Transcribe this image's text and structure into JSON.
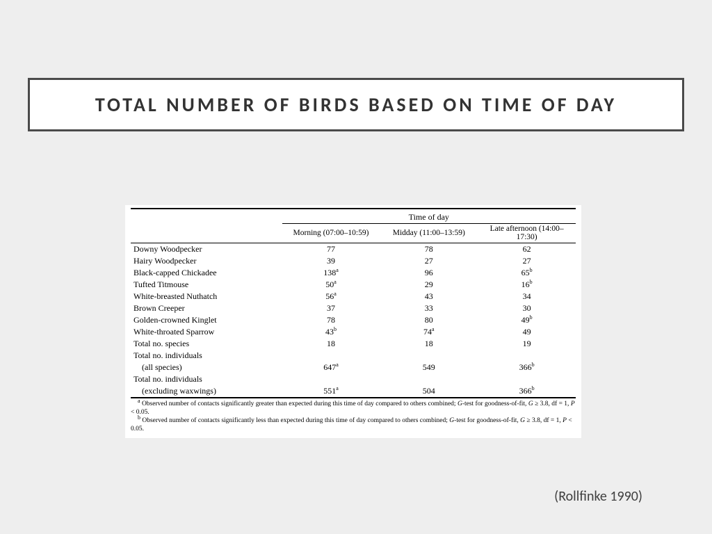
{
  "slide": {
    "title": "TOTAL NUMBER OF BIRDS BASED ON TIME OF DAY",
    "citation": "(Rollfinke 1990)",
    "background_color": "#eeeeee",
    "title_border_color": "#4a4a4a"
  },
  "table": {
    "spanner": "Time of day",
    "columns": [
      "Morning (07:00–10:59)",
      "Midday (11:00–13:59)",
      "Late afternoon (14:00–17:30)"
    ],
    "rows": [
      {
        "label": "Downy Woodpecker",
        "v": [
          "77",
          "78",
          "62"
        ],
        "sup": [
          "",
          "",
          ""
        ]
      },
      {
        "label": "Hairy Woodpecker",
        "v": [
          "39",
          "27",
          "27"
        ],
        "sup": [
          "",
          "",
          ""
        ]
      },
      {
        "label": "Black-capped Chickadee",
        "v": [
          "138",
          "96",
          "65"
        ],
        "sup": [
          "a",
          "",
          "b"
        ]
      },
      {
        "label": "Tufted Titmouse",
        "v": [
          "50",
          "29",
          "16"
        ],
        "sup": [
          "a",
          "",
          "b"
        ]
      },
      {
        "label": "White-breasted Nuthatch",
        "v": [
          "56",
          "43",
          "34"
        ],
        "sup": [
          "a",
          "",
          ""
        ]
      },
      {
        "label": "Brown Creeper",
        "v": [
          "37",
          "33",
          "30"
        ],
        "sup": [
          "",
          "",
          ""
        ]
      },
      {
        "label": "Golden-crowned Kinglet",
        "v": [
          "78",
          "80",
          "49"
        ],
        "sup": [
          "",
          "",
          "b"
        ]
      },
      {
        "label": "White-throated Sparrow",
        "v": [
          "43",
          "74",
          "49"
        ],
        "sup": [
          "b",
          "a",
          ""
        ]
      },
      {
        "label": "Total no. species",
        "v": [
          "18",
          "18",
          "19"
        ],
        "sup": [
          "",
          "",
          ""
        ]
      },
      {
        "label": "Total no. individuals",
        "sub": "(all species)",
        "v": [
          "647",
          "549",
          "366"
        ],
        "sup": [
          "a",
          "",
          "b"
        ]
      },
      {
        "label": "Total no. individuals",
        "sub": "(excluding waxwings)",
        "v": [
          "551",
          "504",
          "366"
        ],
        "sup": [
          "a",
          "",
          "b"
        ]
      }
    ],
    "footnotes": {
      "a_pre": "Observed number of contacts significantly greater than expected during this time of day compared to others combined; ",
      "a_test": "G",
      "a_mid": "-test for goodness-of-fit, ",
      "a_stat": "G ≥ 3.8, df = 1, P < 0.05.",
      "b_pre": "Observed number of contacts significantly less than expected during this time of day compared to others combined; ",
      "b_test": "G",
      "b_mid": "-test for goodness-of-fit, ",
      "b_stat": "G ≥ 3.8, df = 1, P < 0.05."
    },
    "styling": {
      "font_family": "Times New Roman",
      "body_fontsize_pt": 12,
      "footnote_fontsize_pt": 9.5,
      "rule_color": "#000000",
      "background_color": "#ffffff",
      "col_widths_pct": [
        34,
        22,
        22,
        22
      ]
    }
  }
}
